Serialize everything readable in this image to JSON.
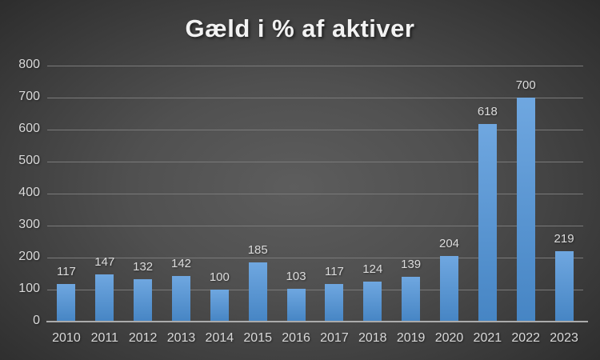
{
  "chart_data": {
    "type": "bar",
    "title": "Gæld i % af aktiver",
    "categories": [
      "2010",
      "2011",
      "2012",
      "2013",
      "2014",
      "2015",
      "2016",
      "2017",
      "2018",
      "2019",
      "2020",
      "2021",
      "2022",
      "2023"
    ],
    "values": [
      117,
      147,
      132,
      142,
      100,
      185,
      103,
      117,
      124,
      139,
      204,
      618,
      700,
      219
    ],
    "xlabel": "",
    "ylabel": "",
    "ylim": [
      0,
      800
    ],
    "ytick_step": 100,
    "ytick_labels": [
      "0",
      "100",
      "200",
      "300",
      "400",
      "500",
      "600",
      "700",
      "800"
    ],
    "grid": "horizontal",
    "legend_position": "none",
    "data_labels": "above-bars"
  },
  "colors": {
    "background_center": "#5d5d5d",
    "background_edge": "#262626",
    "bar_top": "#6FA7E0",
    "bar_bottom": "#4685C4",
    "gridline": "#7a7a7a",
    "axis_line": "#ABABAB",
    "tick_label": "#D9D9D9",
    "data_label": "#DCDCDC",
    "title": "#F2F2F2"
  }
}
